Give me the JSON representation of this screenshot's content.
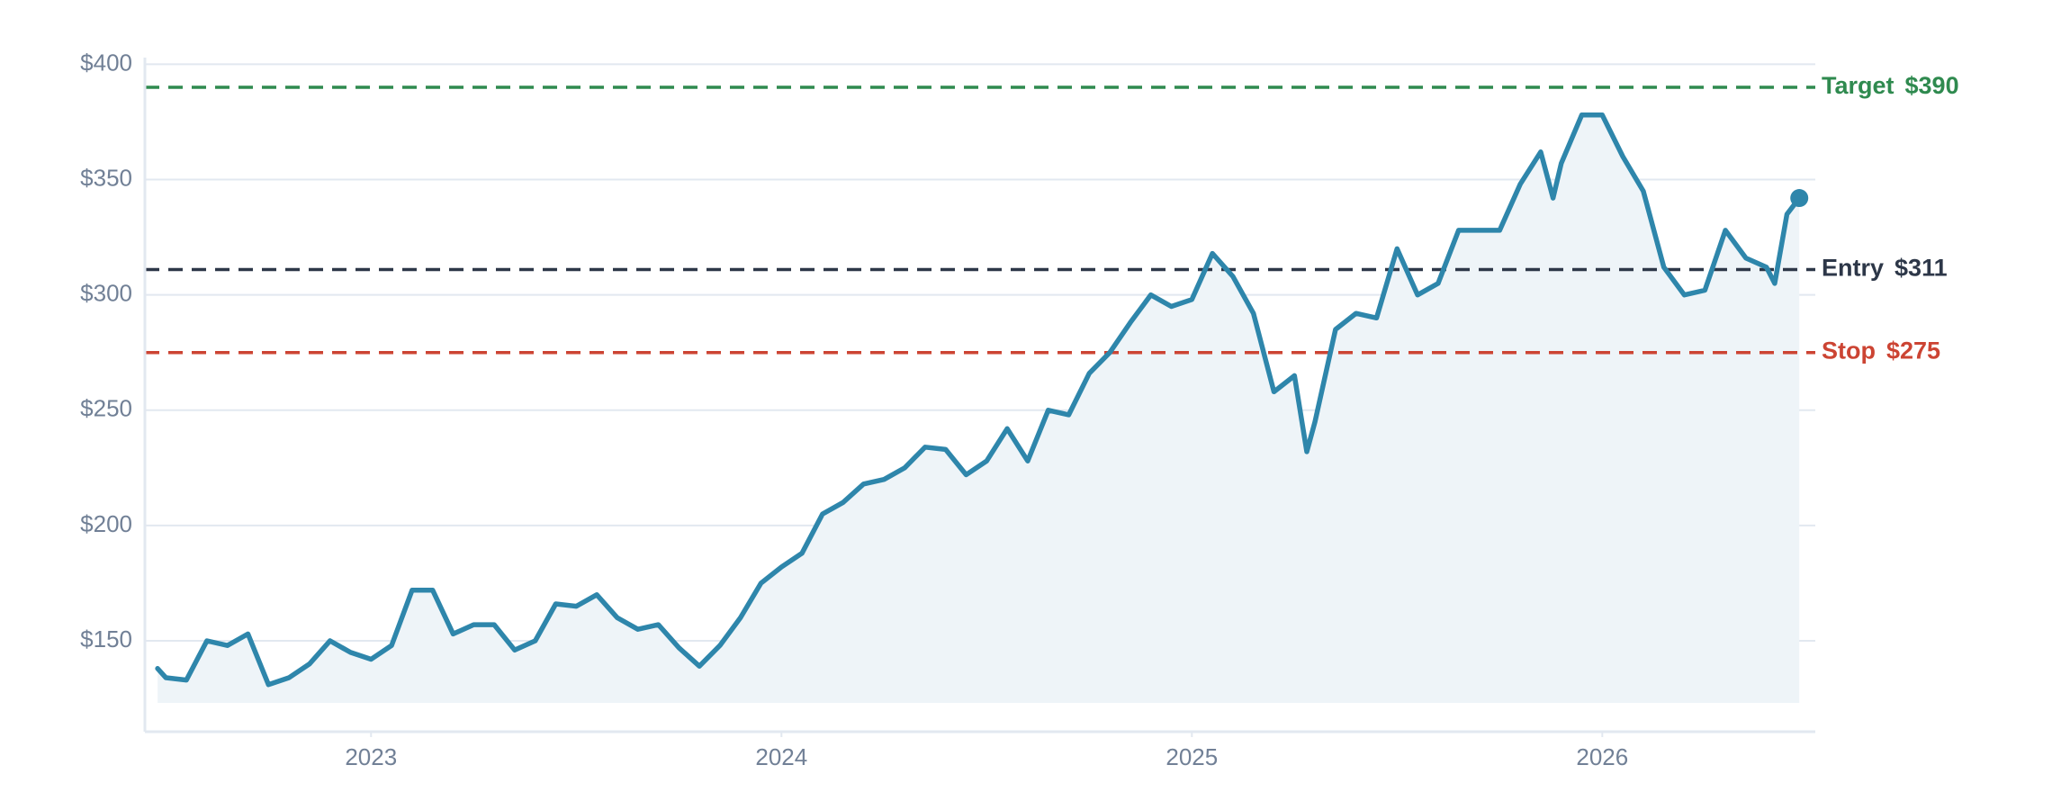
{
  "chart_data": {
    "type": "line",
    "color": "#2e86ab",
    "fill_color": "#eef4f8",
    "grid": true,
    "x": [
      2022.48,
      2022.5,
      2022.55,
      2022.6,
      2022.65,
      2022.7,
      2022.75,
      2022.8,
      2022.85,
      2022.9,
      2022.95,
      2023.0,
      2023.05,
      2023.1,
      2023.15,
      2023.2,
      2023.25,
      2023.3,
      2023.35,
      2023.4,
      2023.45,
      2023.5,
      2023.55,
      2023.6,
      2023.65,
      2023.7,
      2023.75,
      2023.8,
      2023.85,
      2023.9,
      2023.95,
      2024.0,
      2024.05,
      2024.1,
      2024.15,
      2024.2,
      2024.25,
      2024.3,
      2024.35,
      2024.4,
      2024.45,
      2024.5,
      2024.55,
      2024.6,
      2024.65,
      2024.7,
      2024.75,
      2024.8,
      2024.85,
      2024.9,
      2024.95,
      2025.0,
      2025.05,
      2025.1,
      2025.15,
      2025.2,
      2025.25,
      2025.28,
      2025.3,
      2025.35,
      2025.4,
      2025.45,
      2025.5,
      2025.55,
      2025.6,
      2025.65,
      2025.7,
      2025.75,
      2025.8,
      2025.85,
      2025.88,
      2025.9,
      2025.95,
      2026.0,
      2026.05,
      2026.1,
      2026.15,
      2026.2,
      2026.25,
      2026.3,
      2026.35,
      2026.4,
      2026.42,
      2026.45,
      2026.48
    ],
    "values": [
      138,
      134,
      133,
      150,
      148,
      153,
      131,
      134,
      140,
      150,
      145,
      142,
      148,
      172,
      172,
      153,
      157,
      157,
      146,
      150,
      166,
      165,
      170,
      160,
      155,
      157,
      147,
      139,
      148,
      160,
      175,
      182,
      188,
      205,
      210,
      218,
      220,
      225,
      234,
      233,
      222,
      228,
      242,
      228,
      250,
      248,
      266,
      275,
      288,
      300,
      295,
      298,
      318,
      308,
      292,
      258,
      265,
      232,
      245,
      285,
      292,
      290,
      320,
      300,
      305,
      328,
      328,
      328,
      348,
      362,
      342,
      357,
      378,
      378,
      360,
      345,
      312,
      300,
      302,
      328,
      316,
      312,
      305,
      335,
      342
    ],
    "xlim": [
      2022.449,
      2026.519
    ],
    "xticks": [
      2023,
      2024,
      2025,
      2026
    ],
    "ylim": [
      110.6,
      402.9
    ],
    "yticks": [
      {
        "value": 150,
        "label": "$150"
      },
      {
        "value": 200,
        "label": "$200"
      },
      {
        "value": 250,
        "label": "$250"
      },
      {
        "value": 300,
        "label": "$300"
      },
      {
        "value": 350,
        "label": "$350"
      },
      {
        "value": 400,
        "label": "$400"
      }
    ],
    "ref_lines": [
      {
        "label": "Target",
        "value": 390,
        "value_label": "$390",
        "color": "#2f8a4f"
      },
      {
        "label": "Entry",
        "value": 311,
        "value_label": "$311",
        "color": "#2d3748"
      },
      {
        "label": "Stop",
        "value": 275,
        "value_label": "$275",
        "color": "#cc4433"
      }
    ]
  }
}
